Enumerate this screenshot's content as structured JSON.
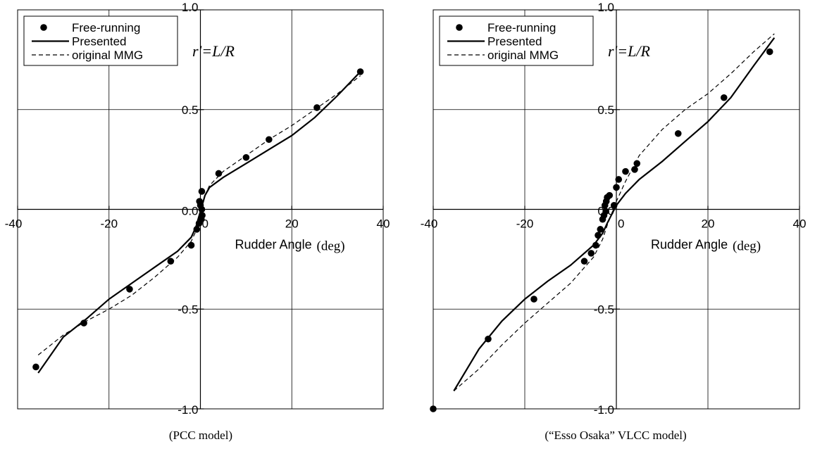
{
  "chart_data": [
    {
      "type": "line",
      "title": "",
      "formula": "r'=L/R",
      "caption": "(PCC model)",
      "xlabel": "Rudder Angle",
      "xunit": "(deg)",
      "xlim": [
        -40,
        40
      ],
      "ylim": [
        -1.0,
        1.0
      ],
      "xticks": [
        "-40",
        "-20",
        "0",
        "20",
        "40"
      ],
      "yticks": [
        "-1.0",
        "-0.5",
        "0.0",
        "0.5",
        "1.0"
      ],
      "grid": true,
      "legend_position": "top-left",
      "legend": [
        "Free-running",
        "Presented",
        "original MMG"
      ],
      "series": [
        {
          "name": "Free-running",
          "kind": "scatter",
          "x": [
            -36,
            -25.5,
            -15.5,
            -6.5,
            -2,
            -0.8,
            -0.3,
            0.2,
            0.4,
            0.3,
            0,
            -0.2,
            0.3,
            4,
            10,
            15,
            25.5,
            35
          ],
          "y": [
            -0.79,
            -0.57,
            -0.4,
            -0.26,
            -0.18,
            -0.1,
            -0.07,
            -0.05,
            -0.03,
            0.0,
            0.02,
            0.04,
            0.09,
            0.18,
            0.26,
            0.35,
            0.51,
            0.69
          ]
        },
        {
          "name": "Presented",
          "kind": "line",
          "x": [
            -35.5,
            -30,
            -25,
            -20,
            -15,
            -10,
            -5,
            -2,
            -1,
            0,
            1,
            2,
            5,
            10,
            15,
            20,
            25,
            30,
            35
          ],
          "y": [
            -0.82,
            -0.64,
            -0.55,
            -0.45,
            -0.37,
            -0.29,
            -0.21,
            -0.14,
            -0.09,
            -0.01,
            0.07,
            0.11,
            0.16,
            0.23,
            0.3,
            0.37,
            0.46,
            0.57,
            0.69
          ]
        },
        {
          "name": "original MMG",
          "kind": "line",
          "x": [
            -35.5,
            -30,
            -25,
            -20,
            -15,
            -10,
            -5,
            -2,
            -1,
            0,
            1,
            2,
            5,
            10,
            15,
            20,
            25,
            30,
            35
          ],
          "y": [
            -0.73,
            -0.63,
            -0.56,
            -0.5,
            -0.43,
            -0.34,
            -0.24,
            -0.16,
            -0.11,
            -0.02,
            0.07,
            0.12,
            0.19,
            0.27,
            0.35,
            0.42,
            0.5,
            0.58,
            0.67
          ]
        }
      ]
    },
    {
      "type": "line",
      "title": "",
      "formula": "r'=L/R",
      "caption": "(“Esso Osaka” VLCC model)",
      "xlabel": "Rudder Angle",
      "xunit": "(deg)",
      "xlim": [
        -40,
        40
      ],
      "ylim": [
        -1.0,
        1.0
      ],
      "xticks": [
        "-40",
        "-20",
        "0",
        "20",
        "40"
      ],
      "yticks": [
        "-1.0",
        "-0.5",
        "0.0",
        "0.5",
        "1.0"
      ],
      "grid": true,
      "legend_position": "top-left",
      "legend": [
        "Free-running",
        "Presented",
        "original MMG"
      ],
      "series": [
        {
          "name": "Free-running",
          "kind": "scatter",
          "x": [
            -40,
            -28,
            -18,
            -7,
            -5.5,
            -4.5,
            -4,
            -3.5,
            -3,
            -2.7,
            -2.3,
            -2.5,
            -2.2,
            -2,
            -1.5,
            -0.5,
            0,
            0.5,
            2,
            4,
            4.5,
            13.5,
            23.5,
            33.5
          ],
          "y": [
            -1.0,
            -0.65,
            -0.45,
            -0.26,
            -0.22,
            -0.18,
            -0.13,
            -0.1,
            -0.05,
            -0.03,
            -0.01,
            0.02,
            0.04,
            0.06,
            0.07,
            0.02,
            0.11,
            0.15,
            0.19,
            0.2,
            0.23,
            0.38,
            0.56,
            0.79
          ]
        },
        {
          "name": "Presented",
          "kind": "line",
          "x": [
            -35.5,
            -30,
            -25,
            -20,
            -15,
            -10,
            -5,
            -3,
            -2,
            0,
            2,
            5,
            10,
            15,
            20,
            25,
            30,
            34.5
          ],
          "y": [
            -0.91,
            -0.7,
            -0.56,
            -0.45,
            -0.36,
            -0.28,
            -0.18,
            -0.12,
            -0.07,
            0.02,
            0.08,
            0.15,
            0.24,
            0.34,
            0.44,
            0.56,
            0.72,
            0.86
          ]
        },
        {
          "name": "original MMG",
          "kind": "line",
          "x": [
            -35.5,
            -30,
            -25,
            -20,
            -15,
            -10,
            -5,
            -3,
            -2,
            0,
            2,
            5,
            10,
            15,
            20,
            25,
            30,
            34.5
          ],
          "y": [
            -0.91,
            -0.8,
            -0.68,
            -0.57,
            -0.47,
            -0.37,
            -0.24,
            -0.15,
            -0.08,
            0.04,
            0.14,
            0.27,
            0.4,
            0.5,
            0.58,
            0.68,
            0.79,
            0.88
          ]
        }
      ]
    }
  ]
}
